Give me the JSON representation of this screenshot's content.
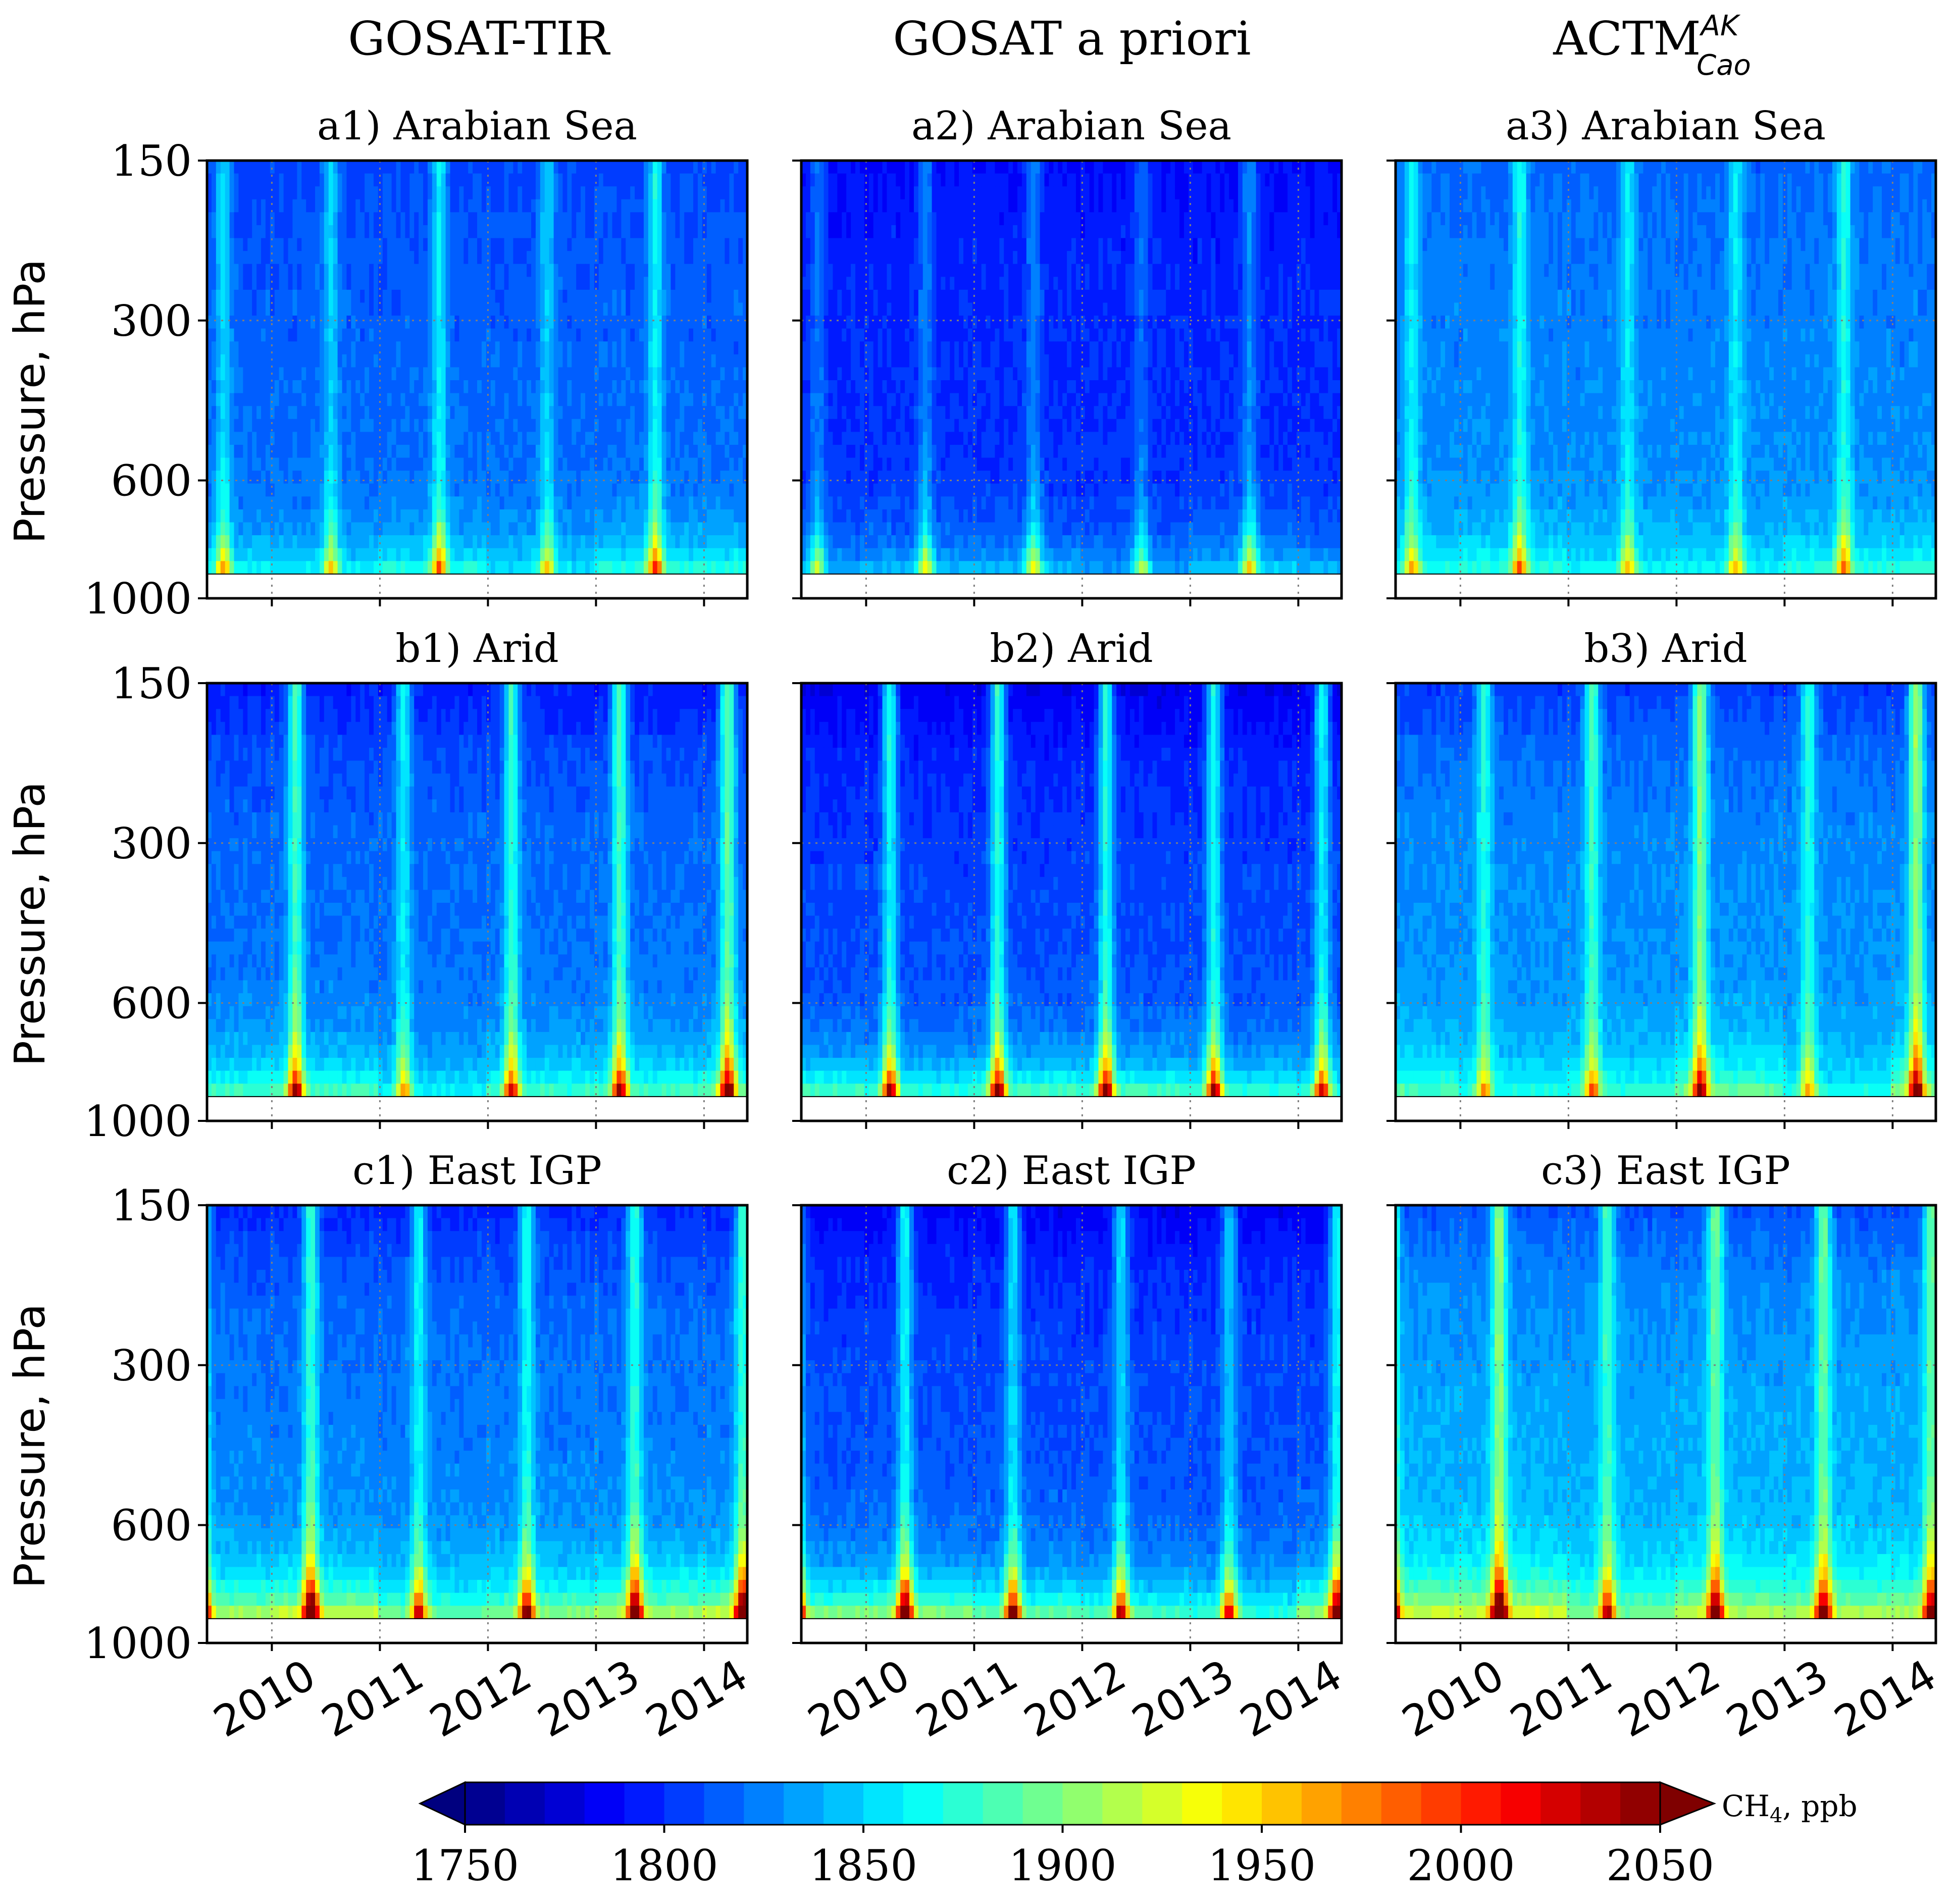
{
  "figure": {
    "column_titles": [
      "GOSAT-TIR",
      "GOSAT a priori",
      "ACTM"
    ],
    "actm_superscript": "AK",
    "actm_subscript": "Cao",
    "ylabel": "Pressure, hPa"
  },
  "colorbar": {
    "label_prefix": "CH",
    "label_sub": "4",
    "label_suffix": ", ppb",
    "min": 1750,
    "max": 2050,
    "step": 10,
    "ticks": [
      1750,
      1800,
      1850,
      1900,
      1950,
      2000,
      2050
    ],
    "tick_labels": [
      "1750",
      "1800",
      "1850",
      "1900",
      "1950",
      "2000",
      "2050"
    ],
    "extend": "both",
    "colormap": "jet"
  },
  "chart_data": [
    {
      "id": "a1",
      "title": "a1) Arabian Sea",
      "dataset": "GOSAT-TIR",
      "region": "Arabian Sea",
      "type": "heatmap",
      "baseline_ppb": 1815,
      "season_amplitude_ppb": 40,
      "surface_peak_ppb": 1965
    },
    {
      "id": "a2",
      "title": "a2) Arabian Sea",
      "dataset": "GOSAT a priori",
      "region": "Arabian Sea",
      "type": "heatmap",
      "baseline_ppb": 1798,
      "season_amplitude_ppb": 30,
      "surface_peak_ppb": 1960
    },
    {
      "id": "a3",
      "title": "a3) Arabian Sea",
      "dataset": "ACTM",
      "region": "Arabian Sea",
      "type": "heatmap",
      "baseline_ppb": 1825,
      "season_amplitude_ppb": 40,
      "surface_peak_ppb": 1965
    },
    {
      "id": "b1",
      "title": "b1) Arid",
      "dataset": "GOSAT-TIR",
      "region": "Arid",
      "type": "heatmap",
      "baseline_ppb": 1818,
      "season_amplitude_ppb": 60,
      "surface_peak_ppb": 2010
    },
    {
      "id": "b2",
      "title": "b2) Arid",
      "dataset": "GOSAT a priori",
      "region": "Arid",
      "type": "heatmap",
      "baseline_ppb": 1805,
      "season_amplitude_ppb": 55,
      "surface_peak_ppb": 2005
    },
    {
      "id": "b3",
      "title": "b3) Arid",
      "dataset": "ACTM",
      "region": "Arid",
      "type": "heatmap",
      "baseline_ppb": 1828,
      "season_amplitude_ppb": 65,
      "surface_peak_ppb": 2010
    },
    {
      "id": "c1",
      "title": "c1) East IGP",
      "dataset": "GOSAT-TIR",
      "region": "East IGP",
      "type": "heatmap",
      "baseline_ppb": 1822,
      "season_amplitude_ppb": 45,
      "surface_peak_ppb": 2070
    },
    {
      "id": "c2",
      "title": "c2) East IGP",
      "dataset": "GOSAT a priori",
      "region": "East IGP",
      "type": "heatmap",
      "baseline_ppb": 1808,
      "season_amplitude_ppb": 45,
      "surface_peak_ppb": 2070
    },
    {
      "id": "c3",
      "title": "c3) East IGP",
      "dataset": "ACTM",
      "region": "East IGP",
      "type": "heatmap",
      "baseline_ppb": 1835,
      "season_amplitude_ppb": 55,
      "surface_peak_ppb": 2075
    }
  ],
  "axes": {
    "x_start": 2009.4,
    "x_end": 2014.4,
    "x_ticks": [
      2010,
      2011,
      2012,
      2013,
      2014
    ],
    "x_tick_labels": [
      "2010",
      "2011",
      "2012",
      "2013",
      "2014"
    ],
    "y_range": [
      150,
      1000
    ],
    "y_ticks": [
      150,
      300,
      600,
      1000
    ],
    "y_tick_labels": [
      "150",
      "300",
      "600",
      "1000"
    ],
    "y_gridlines": [
      300,
      600
    ],
    "surface_level_hpa": 900,
    "grid": "dotted"
  }
}
